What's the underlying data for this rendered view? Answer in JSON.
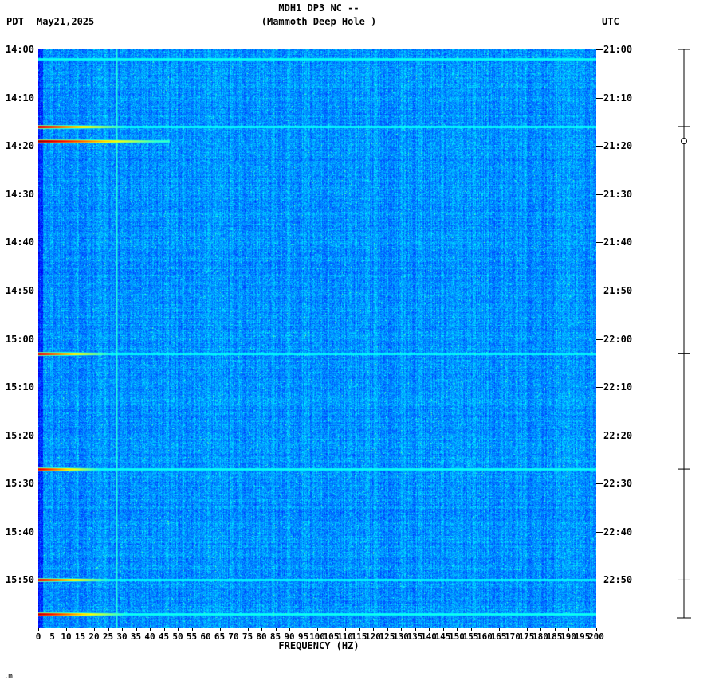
{
  "header": {
    "pdt_label": "PDT",
    "date": "May21,2025",
    "title_line1": "MDH1 DP3 NC --",
    "title_line2": "(Mammoth Deep Hole )",
    "utc_label": "UTC"
  },
  "footer": {
    "corner_mark": ".m"
  },
  "axes": {
    "left_ticks": [
      "14:00",
      "14:10",
      "14:20",
      "14:30",
      "14:40",
      "14:50",
      "15:00",
      "15:10",
      "15:20",
      "15:30",
      "15:40",
      "15:50"
    ],
    "right_ticks": [
      "21:00",
      "21:10",
      "21:20",
      "21:30",
      "21:40",
      "21:50",
      "22:00",
      "22:10",
      "22:20",
      "22:30",
      "22:40",
      "22:50"
    ],
    "freq_ticks": [
      0,
      5,
      10,
      15,
      20,
      25,
      30,
      35,
      40,
      45,
      50,
      55,
      60,
      65,
      70,
      75,
      80,
      85,
      90,
      95,
      100,
      105,
      110,
      115,
      120,
      125,
      130,
      135,
      140,
      145,
      150,
      155,
      160,
      165,
      170,
      175,
      180,
      185,
      190,
      195,
      200
    ],
    "xlabel": "FREQUENCY (HZ)"
  },
  "chart_data": {
    "type": "heatmap",
    "subtype": "seismic-spectrogram",
    "title": "MDH1 DP3 NC -- (Mammoth Deep Hole )",
    "xlabel": "FREQUENCY (HZ)",
    "x_range_hz": [
      0,
      200
    ],
    "freq_tick_step_hz": 5,
    "time_axis_left": {
      "zone": "PDT",
      "start": "14:00",
      "end": "16:00",
      "tick_interval_min": 10
    },
    "time_axis_right": {
      "zone": "UTC",
      "start": "21:00",
      "end": "23:00",
      "tick_interval_min": 10
    },
    "colormap": "jet",
    "background": "low-power blue noise with vertical streak texture",
    "vertical_line_hz": 28,
    "amplitude_scale_present": true,
    "events": [
      {
        "pdt": "14:02",
        "utc": "21:02",
        "type": "weak-band",
        "strength": 0.4,
        "red_extent_hz": 0,
        "max_freq_hz": 200,
        "marker": null
      },
      {
        "pdt": "14:16",
        "utc": "21:16",
        "type": "strong",
        "strength": 0.96,
        "red_extent_hz": 18,
        "max_freq_hz": 200,
        "marker": "tick"
      },
      {
        "pdt": "14:19",
        "utc": "21:19",
        "type": "strong-cutoff",
        "strength": 1.0,
        "red_extent_hz": 25,
        "max_freq_hz": 47,
        "marker": "circle"
      },
      {
        "pdt": "15:03",
        "utc": "22:03",
        "type": "strong",
        "strength": 0.95,
        "red_extent_hz": 15,
        "max_freq_hz": 200,
        "marker": "tick"
      },
      {
        "pdt": "15:27",
        "utc": "22:27",
        "type": "strong",
        "strength": 0.92,
        "red_extent_hz": 13,
        "max_freq_hz": 200,
        "marker": "tick"
      },
      {
        "pdt": "15:50",
        "utc": "22:50",
        "type": "strong",
        "strength": 0.94,
        "red_extent_hz": 15,
        "max_freq_hz": 200,
        "marker": "tick"
      },
      {
        "pdt": "15:57",
        "utc": "22:57",
        "type": "strong",
        "strength": 0.96,
        "red_extent_hz": 18,
        "max_freq_hz": 200,
        "marker": null
      }
    ]
  }
}
